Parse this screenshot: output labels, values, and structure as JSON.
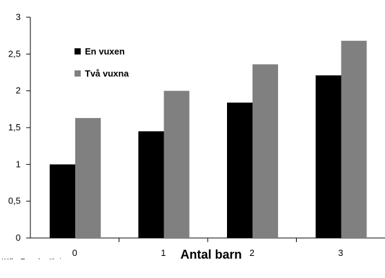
{
  "chart_data": {
    "type": "bar",
    "categories": [
      "0",
      "1",
      "2",
      "3"
    ],
    "series": [
      {
        "name": "En vuxen",
        "color": "#000000",
        "values": [
          1.0,
          1.45,
          1.84,
          2.21
        ]
      },
      {
        "name": "Två vuxna",
        "color": "#808080",
        "values": [
          1.63,
          2.0,
          2.36,
          2.68
        ]
      }
    ],
    "title": "",
    "xlabel": "Antal barn",
    "ylabel": "",
    "ylim": [
      0,
      3
    ],
    "yticks": [
      "0",
      "0,5",
      "1",
      "1,5",
      "2",
      "2,5",
      "3"
    ],
    "grid": false,
    "legend_position": "top-left"
  },
  "source_note": "Källa: Egna beräkningar"
}
